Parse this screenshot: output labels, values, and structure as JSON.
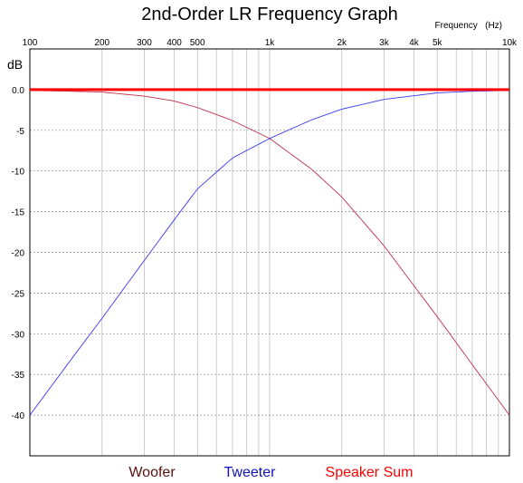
{
  "chart_data": {
    "type": "line",
    "title": "2nd-Order LR Frequency Graph",
    "xlabel": "Frequency   (Hz)",
    "ylabel": "dB",
    "x_scale": "log",
    "xlim": [
      100,
      10000
    ],
    "ylim": [
      -45,
      5
    ],
    "grid": true,
    "x_tick_labels": [
      {
        "value": 100,
        "label": "100"
      },
      {
        "value": 200,
        "label": "200"
      },
      {
        "value": 300,
        "label": "300"
      },
      {
        "value": 400,
        "label": "400"
      },
      {
        "value": 500,
        "label": "500"
      },
      {
        "value": 1000,
        "label": "1k"
      },
      {
        "value": 2000,
        "label": "2k"
      },
      {
        "value": 3000,
        "label": "3k"
      },
      {
        "value": 4000,
        "label": "4k"
      },
      {
        "value": 5000,
        "label": "5k"
      },
      {
        "value": 10000,
        "label": "10k"
      }
    ],
    "y_tick_labels": [
      {
        "value": 0,
        "label": "0.0"
      },
      {
        "value": -5,
        "label": "-5"
      },
      {
        "value": -10,
        "label": "-10"
      },
      {
        "value": -15,
        "label": "-15"
      },
      {
        "value": -20,
        "label": "-20"
      },
      {
        "value": -25,
        "label": "-25"
      },
      {
        "value": -30,
        "label": "-30"
      },
      {
        "value": -35,
        "label": "-35"
      },
      {
        "value": -40,
        "label": "-40"
      }
    ],
    "x": [
      100,
      150,
      200,
      300,
      400,
      500,
      700,
      1000,
      1500,
      2000,
      3000,
      5000,
      7000,
      10000
    ],
    "series": [
      {
        "name": "Woofer",
        "color": "#c0304a",
        "values": [
          -0.1,
          -0.2,
          -0.3,
          -0.8,
          -1.4,
          -2.2,
          -3.8,
          -6.0,
          -9.8,
          -13.2,
          -19.2,
          -27.9,
          -33.8,
          -40.0
        ]
      },
      {
        "name": "Tweeter",
        "color": "#3a3af0",
        "values": [
          -40.0,
          -33.0,
          -28.1,
          -21.0,
          -16.0,
          -12.2,
          -8.4,
          -6.0,
          -3.7,
          -2.4,
          -1.2,
          -0.4,
          -0.2,
          -0.1
        ]
      },
      {
        "name": "Speaker Sum",
        "color": "#ff0000",
        "values": [
          0,
          0,
          0,
          0,
          0,
          0,
          0,
          0,
          0,
          0,
          0,
          0,
          0,
          0
        ]
      }
    ],
    "legend": [
      {
        "label": "Woofer",
        "color": "#5a1010"
      },
      {
        "label": "Tweeter",
        "color": "#1010c0"
      },
      {
        "label": "Speaker Sum",
        "color": "#ff0000"
      }
    ],
    "legend_position": "bottom"
  }
}
